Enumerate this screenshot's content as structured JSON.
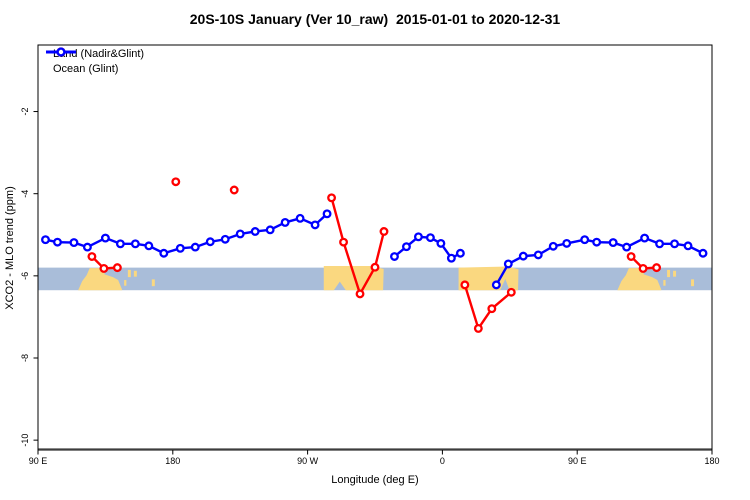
{
  "title": "20S-10S January (Ver 10_raw)  2015-01-01 to 2020-12-31",
  "legend": {
    "items": [
      {
        "label": "Land (Nadir&Glint)",
        "color": "#FF0000"
      },
      {
        "label": "Ocean (Glint)",
        "color": "#0000FF"
      }
    ]
  },
  "chart_data": {
    "type": "line",
    "title": "20S-10S January (Ver 10_raw)  2015-01-01 to 2020-12-31",
    "xlabel": "Longitude (deg E)",
    "ylabel": "XCO2 - MLO trend (ppm)",
    "xlim": [
      90,
      540
    ],
    "ylim": [
      -10.24,
      -0.38
    ],
    "grid": false,
    "legend_position": "top-left-inside",
    "xticks": [
      {
        "v": 90,
        "label": "90 E"
      },
      {
        "v": 180,
        "label": "180"
      },
      {
        "v": 270,
        "label": "90 W"
      },
      {
        "v": 360,
        "label": "0"
      },
      {
        "v": 450,
        "label": "90 E"
      },
      {
        "v": 540,
        "label": "180"
      }
    ],
    "yticks": [
      {
        "v": -2,
        "label": "-2"
      },
      {
        "v": -4,
        "label": "-4"
      },
      {
        "v": -6,
        "label": "-6"
      },
      {
        "v": -8,
        "label": "-8"
      },
      {
        "v": -10,
        "label": "-10"
      }
    ],
    "series": [
      {
        "name": "Land (Nadir&Glint)",
        "color": "#FF0000",
        "segments": [
          [
            [
              126,
              -5.53
            ],
            [
              134,
              -5.82
            ],
            [
              143,
              -5.8
            ]
          ],
          [
            [
              182,
              -3.71
            ]
          ],
          [
            [
              221,
              -3.91
            ]
          ],
          [
            [
              286,
              -4.1
            ],
            [
              294,
              -5.18
            ],
            [
              305,
              -6.44
            ],
            [
              315,
              -5.79
            ],
            [
              321,
              -4.92
            ]
          ],
          [
            [
              375,
              -6.22
            ],
            [
              384,
              -7.28
            ],
            [
              393,
              -6.8
            ],
            [
              406,
              -6.4
            ]
          ],
          [
            [
              486,
              -5.53
            ],
            [
              494,
              -5.82
            ],
            [
              503,
              -5.8
            ]
          ]
        ]
      },
      {
        "name": "Ocean (Glint)",
        "color": "#0000FF",
        "segments": [
          [
            [
              95,
              -5.12
            ],
            [
              103,
              -5.18
            ],
            [
              114,
              -5.19
            ],
            [
              123,
              -5.3
            ],
            [
              135,
              -5.08
            ],
            [
              145,
              -5.22
            ],
            [
              155,
              -5.22
            ],
            [
              164,
              -5.27
            ],
            [
              174,
              -5.45
            ],
            [
              185,
              -5.33
            ],
            [
              195,
              -5.3
            ],
            [
              205,
              -5.17
            ],
            [
              215,
              -5.11
            ],
            [
              225,
              -4.98
            ],
            [
              235,
              -4.92
            ],
            [
              245,
              -4.88
            ],
            [
              255,
              -4.7
            ],
            [
              265,
              -4.6
            ],
            [
              275,
              -4.76
            ],
            [
              283,
              -4.49
            ]
          ],
          [
            [
              328,
              -5.53
            ],
            [
              336,
              -5.29
            ],
            [
              344,
              -5.05
            ],
            [
              352,
              -5.07
            ],
            [
              359,
              -5.21
            ],
            [
              366,
              -5.57
            ],
            [
              372,
              -5.45
            ]
          ],
          [
            [
              396,
              -6.22
            ],
            [
              404,
              -5.71
            ],
            [
              414,
              -5.52
            ],
            [
              424,
              -5.49
            ],
            [
              434,
              -5.28
            ],
            [
              443,
              -5.21
            ],
            [
              455,
              -5.12
            ],
            [
              463,
              -5.18
            ],
            [
              474,
              -5.19
            ],
            [
              483,
              -5.3
            ],
            [
              495,
              -5.08
            ],
            [
              505,
              -5.22
            ],
            [
              515,
              -5.22
            ],
            [
              524,
              -5.27
            ],
            [
              534,
              -5.45
            ]
          ]
        ]
      }
    ],
    "map_band": {
      "description": "land/ocean strip for latitude band",
      "y_top": -5.8,
      "y_bottom": -6.35,
      "ocean_color": "#A9BDD9",
      "land_color": "#FAD880",
      "land_patches": [
        [
          [
            124.5,
            0.02
          ],
          [
            133.5,
            0.02
          ],
          [
            134.5,
            0.3
          ],
          [
            140,
            0.42
          ],
          [
            143.5,
            0.55
          ],
          [
            146,
            0.95
          ],
          [
            146.2,
            1
          ],
          [
            116.8,
            1
          ],
          [
            117.5,
            0.9
          ],
          [
            119.5,
            0.6
          ],
          [
            122.5,
            0.33
          ]
        ],
        [
          [
            280.8,
            -0.07
          ],
          [
            313,
            -0.07
          ],
          [
            320.8,
            0.06
          ],
          [
            320.4,
            1
          ],
          [
            295.5,
            1
          ],
          [
            291.5,
            0.62
          ],
          [
            287.5,
            1
          ],
          [
            280.8,
            1
          ]
        ],
        [
          [
            370.8,
            0
          ],
          [
            404,
            -0.05
          ],
          [
            410.8,
            0.08
          ],
          [
            410.5,
            1
          ],
          [
            404.8,
            1
          ],
          [
            402,
            0.5
          ],
          [
            398.6,
            1
          ],
          [
            370.8,
            1
          ]
        ],
        [
          [
            484.5,
            0.02
          ],
          [
            493.5,
            0.02
          ],
          [
            494.5,
            0.3
          ],
          [
            500,
            0.42
          ],
          [
            503.5,
            0.55
          ],
          [
            506,
            0.95
          ],
          [
            506.2,
            1
          ],
          [
            476.8,
            1
          ],
          [
            477.5,
            0.9
          ],
          [
            479.5,
            0.6
          ],
          [
            482.5,
            0.33
          ]
        ]
      ],
      "island_specks": [
        [
          150,
          0.1,
          152,
          0.42
        ],
        [
          154,
          0.14,
          156,
          0.4
        ],
        [
          166,
          0.52,
          168,
          0.82
        ],
        [
          147.5,
          0.55,
          149,
          0.8
        ],
        [
          510,
          0.1,
          512,
          0.42
        ],
        [
          514,
          0.14,
          516,
          0.4
        ],
        [
          526,
          0.52,
          528,
          0.82
        ],
        [
          507.5,
          0.55,
          509,
          0.8
        ]
      ]
    }
  }
}
